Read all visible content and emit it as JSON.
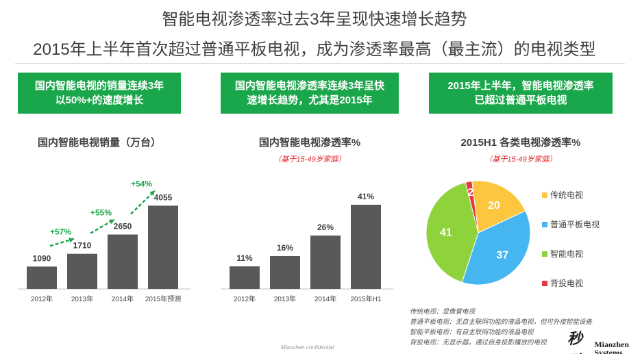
{
  "header": {
    "title_line1": "智能电视渗透率过去3年呈现快速增长趋势",
    "title_line2": "2015年上半年首次超过普通平板电视，成为渗透率最高（最主流）的电视类型"
  },
  "callouts": [
    {
      "line1": "国内智能电视的销量连续3年",
      "line2": "以50%+的速度增长"
    },
    {
      "line1": "国内智能电视渗透率连续3年呈快",
      "line2": "速增长趋势，尤其是2015年"
    },
    {
      "line1": "2015年上半年，智能电视渗透率",
      "line2": "已超过普通平板电视"
    }
  ],
  "panel_titles": {
    "sales": "国内智能电视销量（万台）",
    "penetration": "国内智能电视渗透率%",
    "penetration_sub": "（基于15-49岁家庭）",
    "pie": "2015H1 各类电视渗透率%",
    "pie_sub": "（基于15-49岁家庭）"
  },
  "chart_data": [
    {
      "type": "bar",
      "title": "国内智能电视销量（万台）",
      "categories": [
        "2012年",
        "2013年",
        "2014年",
        "2015年预测"
      ],
      "values": [
        1090,
        1710,
        2650,
        4055
      ],
      "labels": [
        "1090",
        "1710",
        "2650",
        "4055"
      ],
      "growth_annotations": [
        "+57%",
        "+55%",
        "+54%"
      ],
      "ylim": [
        0,
        4400
      ],
      "xlabel": "",
      "ylabel": ""
    },
    {
      "type": "bar",
      "title": "国内智能电视渗透率%",
      "subtitle": "（基于15-49岁家庭）",
      "categories": [
        "2012年",
        "2013年",
        "2014年",
        "2015年H1"
      ],
      "values": [
        11,
        16,
        26,
        41
      ],
      "labels": [
        "11%",
        "16%",
        "26%",
        "41%"
      ],
      "ylim": [
        0,
        44
      ],
      "xlabel": "",
      "ylabel": ""
    },
    {
      "type": "pie",
      "title": "2015H1 各类电视渗透率%",
      "subtitle": "（基于15-49岁家庭）",
      "categories": [
        "传统电视",
        "普通平板电视",
        "智能电视",
        "背投电视"
      ],
      "values": [
        20,
        37,
        41,
        2
      ],
      "labels": [
        "20",
        "37",
        "41",
        "2"
      ],
      "legend_position": "right"
    }
  ],
  "colors": {
    "bar": "#595959",
    "green": "#1aa64a",
    "arrow": "#1aa64a",
    "pie": [
      "#fcc63f",
      "#45b6ef",
      "#8ed23c",
      "#e5393f"
    ]
  },
  "definitions": [
    "传统电视：显像管电视",
    "普通平板电视：无自主联网功能的液晶电视，但可外接智能设备",
    "智能平板电视：有自主联网功能的液晶电视",
    "背投电视：无显示器，通过自身投影播放的电视"
  ],
  "footer": {
    "confidential": "Miaozhen confidential",
    "logo_cn": "秒动",
    "logo_en_line1": "Miaozhen",
    "logo_en_line2": "Systems"
  }
}
